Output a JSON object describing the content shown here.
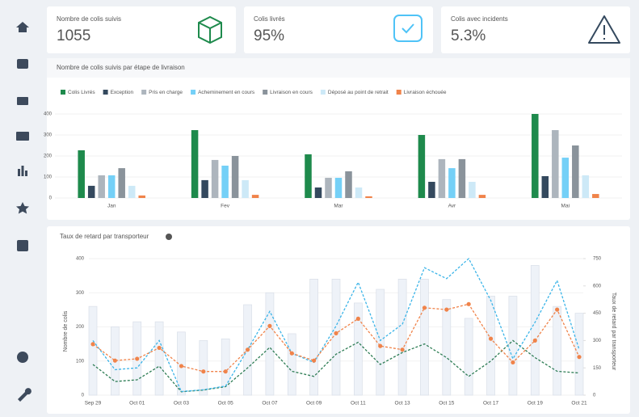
{
  "cards": [
    {
      "label": "Nombre de colis suivis",
      "value": "1055"
    },
    {
      "label": "Colis livrés",
      "value": "95%"
    },
    {
      "label": "Colis avec incidents",
      "value": "5.3%"
    }
  ],
  "bar_chart": {
    "type": "bar",
    "title": "Nombre de colis suivis par étape de livraison",
    "categories": [
      "Jan",
      "Fev",
      "Mar",
      "Avr",
      "Mai"
    ],
    "series": [
      {
        "name": "Colis Livrés",
        "color": "#1e8a4c",
        "values": [
          227,
          323,
          208,
          300,
          400
        ]
      },
      {
        "name": "Exception",
        "color": "#34495e",
        "values": [
          58,
          85,
          50,
          77,
          104
        ]
      },
      {
        "name": "Pris en charge",
        "color": "#adb5bd",
        "values": [
          108,
          181,
          96,
          185,
          323
        ]
      },
      {
        "name": "Acheminement en cours",
        "color": "#74d0f7",
        "values": [
          108,
          154,
          96,
          142,
          192
        ]
      },
      {
        "name": "Livraison en cours",
        "color": "#8a939b",
        "values": [
          142,
          200,
          127,
          185,
          250
        ]
      },
      {
        "name": "Déposé au point de retrait",
        "color": "#cde9f7",
        "values": [
          58,
          85,
          50,
          77,
          108
        ]
      },
      {
        "name": "Livraison échouée",
        "color": "#f0834a",
        "values": [
          12,
          15,
          8,
          15,
          19
        ]
      }
    ],
    "ylim": [
      0,
      400
    ],
    "yticks": [
      0,
      100,
      200,
      300,
      400
    ],
    "grid": true
  },
  "line_chart": {
    "type": "line",
    "title": "Taux de retard par transporteur",
    "y_label": "Nombre de colis",
    "y2_label": "Taux de retard par transporteur",
    "x": [
      "Sep 29",
      null,
      "Oct 01",
      null,
      "Oct 03",
      null,
      "Oct 05",
      null,
      "Oct 07",
      null,
      "Oct 09",
      null,
      "Oct 11",
      null,
      "Oct 13",
      null,
      "Oct 15",
      null,
      "Oct 17",
      null,
      "Oct 19",
      null,
      "Oct 21"
    ],
    "series": [
      {
        "type": "bar",
        "color": "#eef2f8",
        "values": [
          260,
          200,
          215,
          215,
          185,
          160,
          165,
          265,
          300,
          180,
          340,
          340,
          270,
          310,
          340,
          340,
          280,
          225,
          290,
          290,
          380,
          260,
          240
        ]
      },
      {
        "type": "line",
        "color": "#2e7d55",
        "values": [
          90,
          40,
          45,
          85,
          10,
          15,
          25,
          80,
          140,
          70,
          55,
          120,
          155,
          90,
          125,
          150,
          110,
          55,
          100,
          160,
          110,
          70,
          65
        ]
      },
      {
        "type": "line",
        "color": "#3bb4e8",
        "axis": "y2",
        "values": [
          300,
          140,
          150,
          300,
          20,
          30,
          50,
          250,
          460,
          230,
          180,
          380,
          620,
          300,
          390,
          700,
          640,
          750,
          520,
          200,
          400,
          630,
          250
        ]
      },
      {
        "type": "line",
        "color": "#f0834a",
        "axis": "y2",
        "markers": true,
        "values": [
          280,
          190,
          200,
          260,
          160,
          130,
          130,
          250,
          380,
          230,
          190,
          340,
          420,
          270,
          250,
          480,
          470,
          500,
          310,
          180,
          300,
          470,
          210
        ]
      }
    ],
    "ylim": [
      0,
      400
    ],
    "yticks": [
      0,
      100,
      200,
      300,
      400
    ],
    "y2lim": [
      0,
      750
    ],
    "y2ticks": [
      0,
      150,
      300,
      450,
      600,
      750
    ],
    "grid": true
  }
}
